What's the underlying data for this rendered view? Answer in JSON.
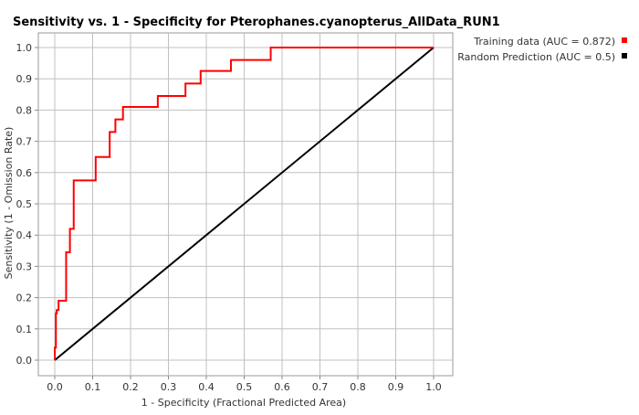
{
  "chart_data": {
    "type": "line",
    "title": "Sensitivity vs. 1 - Specificity for Pterophanes.cyanopterus_AllData_RUN1",
    "xlabel": "1 - Specificity  (Fractional Predicted Area)",
    "ylabel": "Sensitivity  (1 - Omission Rate)",
    "xlim": [
      0.0,
      1.0
    ],
    "ylim": [
      0.0,
      1.0
    ],
    "x_ticks": [
      "0.0",
      "0.1",
      "0.2",
      "0.3",
      "0.4",
      "0.5",
      "0.6",
      "0.7",
      "0.8",
      "0.9",
      "1.0"
    ],
    "y_ticks": [
      "0.0",
      "0.1",
      "0.2",
      "0.3",
      "0.4",
      "0.5",
      "0.6",
      "0.7",
      "0.8",
      "0.9",
      "1.0"
    ],
    "grid": true,
    "legend_position": "top-right",
    "series": [
      {
        "name": "Training data (AUC = 0.872)",
        "color": "#ff0000",
        "x": [
          0.0,
          0.0,
          0.003,
          0.003,
          0.005,
          0.005,
          0.01,
          0.01,
          0.03,
          0.03,
          0.04,
          0.04,
          0.05,
          0.05,
          0.108,
          0.108,
          0.145,
          0.145,
          0.16,
          0.16,
          0.18,
          0.18,
          0.272,
          0.272,
          0.345,
          0.345,
          0.385,
          0.385,
          0.465,
          0.465,
          0.57,
          0.57,
          1.0
        ],
        "y": [
          0.0,
          0.04,
          0.04,
          0.15,
          0.15,
          0.16,
          0.16,
          0.19,
          0.19,
          0.345,
          0.345,
          0.42,
          0.42,
          0.575,
          0.575,
          0.65,
          0.65,
          0.73,
          0.73,
          0.77,
          0.77,
          0.81,
          0.81,
          0.845,
          0.845,
          0.885,
          0.885,
          0.925,
          0.925,
          0.96,
          0.96,
          1.0,
          1.0
        ]
      },
      {
        "name": "Random Prediction (AUC = 0.5)",
        "color": "#000000",
        "x": [
          0.0,
          1.0
        ],
        "y": [
          0.0,
          1.0
        ]
      }
    ]
  }
}
